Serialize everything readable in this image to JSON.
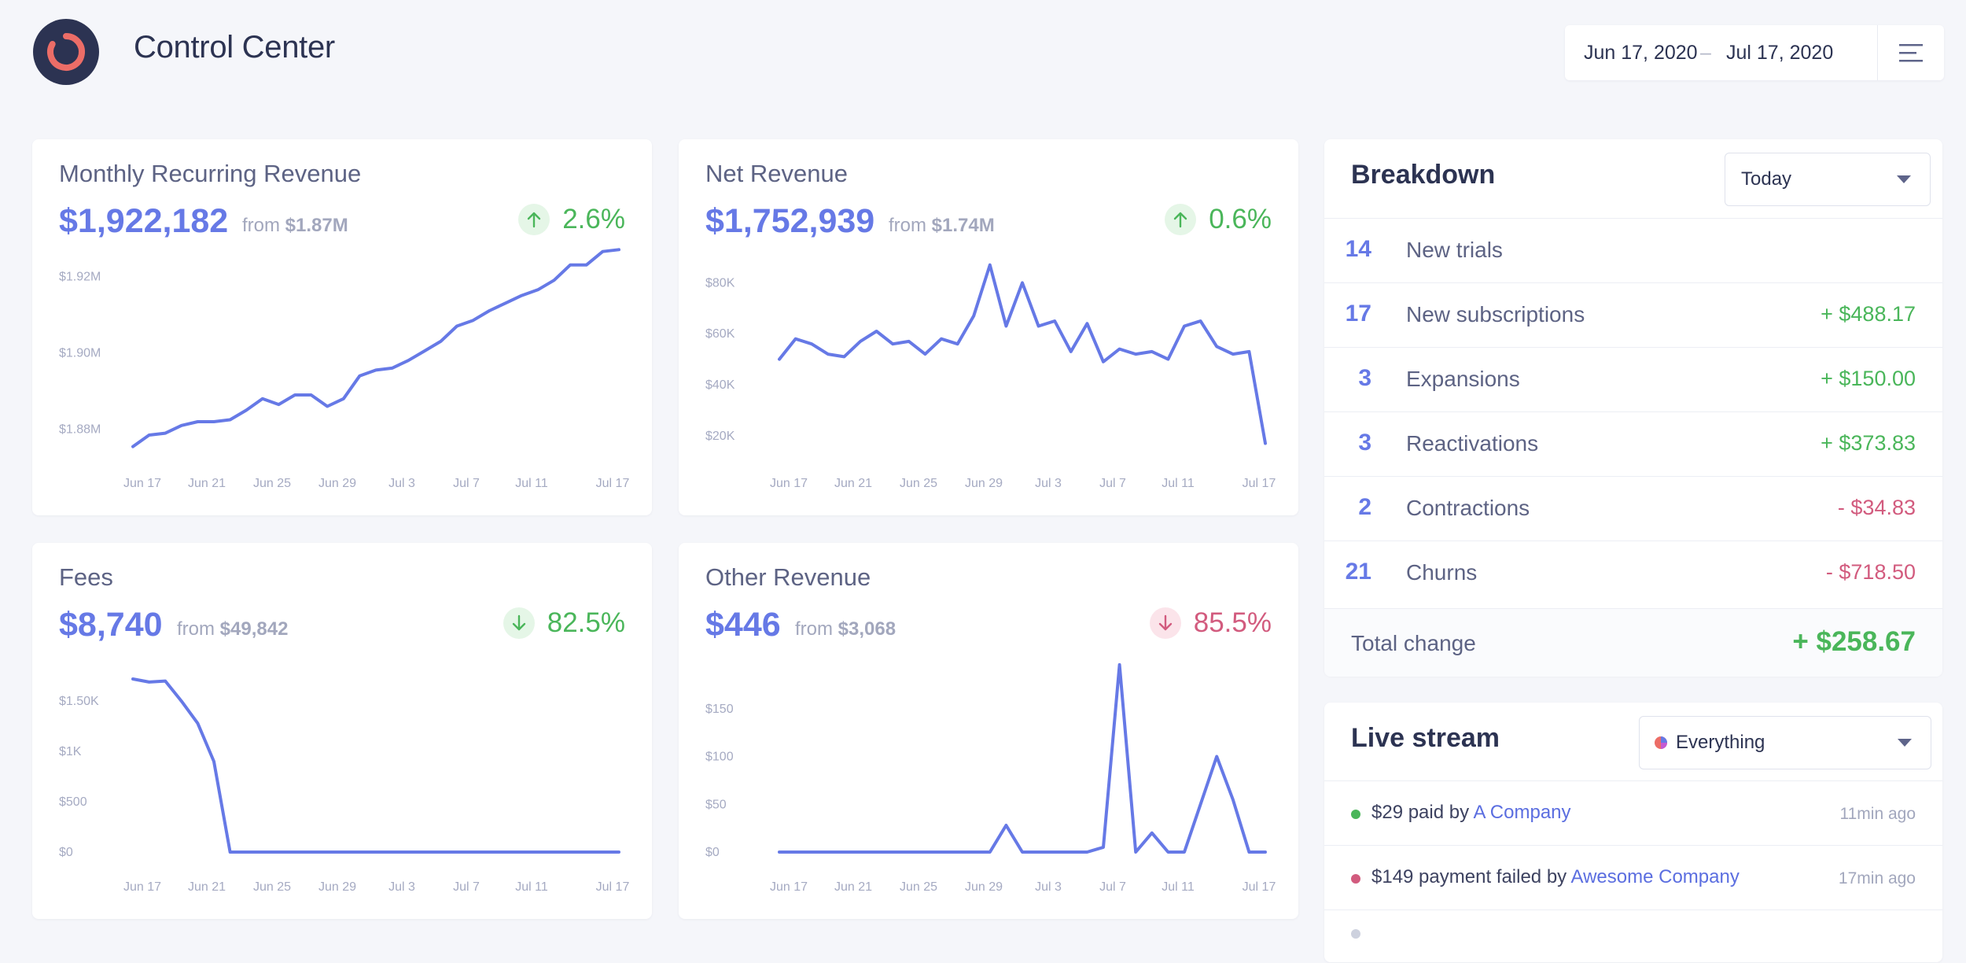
{
  "header": {
    "title": "Control Center",
    "date_start": "Jun 17, 2020",
    "date_separator": "–",
    "date_end": "Jul 17, 2020",
    "icons": {
      "logo": "logo-icon",
      "menu": "menu-icon"
    }
  },
  "colors": {
    "accent": "#6679e6",
    "positive": "#4ab65a",
    "negative": "#d25b7e",
    "brand": "#2c3352",
    "logo_ring": "#ec6d67"
  },
  "metrics": [
    {
      "title": "Monthly Recurring Revenue",
      "value": "$1,922,182",
      "from_label": "from",
      "from_value": "$1.87M",
      "delta": "2.6%",
      "direction": "up",
      "delta_icon": "arrow-up-icon"
    },
    {
      "title": "Net Revenue",
      "value": "$1,752,939",
      "from_label": "from",
      "from_value": "$1.74M",
      "delta": "0.6%",
      "direction": "up",
      "delta_icon": "arrow-up-icon"
    },
    {
      "title": "Fees",
      "value": "$8,740",
      "from_label": "from",
      "from_value": "$49,842",
      "delta": "82.5%",
      "direction": "down",
      "delta_icon": "arrow-down-icon"
    },
    {
      "title": "Other Revenue",
      "value": "$446",
      "from_label": "from",
      "from_value": "$3,068",
      "delta": "85.5%",
      "direction": "down",
      "delta_icon": "arrow-down-icon"
    }
  ],
  "chart_data": [
    {
      "type": "line",
      "x_ticks": [
        "Jun 17",
        "Jun 21",
        "Jun 25",
        "Jun 29",
        "Jul 3",
        "Jul 7",
        "Jul 11",
        "Jul 17"
      ],
      "y_ticks": [
        {
          "v": 1.88,
          "label": "$1.88M"
        },
        {
          "v": 1.9,
          "label": "$1.90M"
        },
        {
          "v": 1.92,
          "label": "$1.92M"
        }
      ],
      "ylim": [
        1.875,
        1.925
      ],
      "values": [
        1.8755,
        1.8785,
        1.879,
        1.881,
        1.882,
        1.882,
        1.8825,
        1.885,
        1.888,
        1.8865,
        1.889,
        1.889,
        1.886,
        1.888,
        1.894,
        1.8955,
        1.896,
        1.898,
        1.9005,
        1.903,
        1.907,
        1.9085,
        1.911,
        1.913,
        1.915,
        1.9165,
        1.919,
        1.923,
        1.923,
        1.9265,
        1.927
      ],
      "series": [
        {
          "values": []
        }
      ]
    },
    {
      "type": "line",
      "x_ticks": [
        "Jun 17",
        "Jun 21",
        "Jun 25",
        "Jun 29",
        "Jul 3",
        "Jul 7",
        "Jul 11",
        "Jul 17"
      ],
      "y_ticks": [
        {
          "v": 20000,
          "label": "$20K"
        },
        {
          "v": 40000,
          "label": "$40K"
        },
        {
          "v": 60000,
          "label": "$60K"
        },
        {
          "v": 80000,
          "label": "$80K"
        }
      ],
      "ylim": [
        15000,
        90000
      ],
      "values": [
        50000,
        58000,
        56000,
        52000,
        51000,
        57000,
        61000,
        56000,
        57000,
        52000,
        58000,
        56000,
        67000,
        87000,
        63000,
        80000,
        63000,
        65000,
        53000,
        64000,
        49000,
        54000,
        52000,
        53000,
        50000,
        63000,
        65000,
        55000,
        52000,
        53000,
        17000
      ]
    },
    {
      "type": "line",
      "x_ticks": [
        "Jun 17",
        "Jun 21",
        "Jun 25",
        "Jun 29",
        "Jul 3",
        "Jul 7",
        "Jul 11",
        "Jul 17"
      ],
      "y_ticks": [
        {
          "v": 0,
          "label": "$0"
        },
        {
          "v": 500,
          "label": "$500"
        },
        {
          "v": 1000,
          "label": "$1K"
        },
        {
          "v": 1500,
          "label": "$1.50K"
        }
      ],
      "ylim": [
        0,
        1900
      ],
      "values": [
        1720,
        1690,
        1700,
        1500,
        1280,
        900,
        0,
        0,
        0,
        0,
        0,
        0,
        0,
        0,
        0,
        0,
        0,
        0,
        0,
        0,
        0,
        0,
        0,
        0,
        0,
        0,
        0,
        0,
        0,
        0,
        0
      ]
    },
    {
      "type": "line",
      "x_ticks": [
        "Jun 17",
        "Jun 21",
        "Jun 25",
        "Jun 29",
        "Jul 3",
        "Jul 7",
        "Jul 11",
        "Jul 17"
      ],
      "y_ticks": [
        {
          "v": 0,
          "label": "$0"
        },
        {
          "v": 50,
          "label": "$50"
        },
        {
          "v": 100,
          "label": "$100"
        },
        {
          "v": 150,
          "label": "$150"
        }
      ],
      "ylim": [
        0,
        200
      ],
      "values": [
        0,
        0,
        0,
        0,
        0,
        0,
        0,
        0,
        0,
        0,
        0,
        0,
        0,
        0,
        28,
        0,
        0,
        0,
        0,
        0,
        5,
        196,
        0,
        20,
        0,
        0,
        50,
        100,
        55,
        0,
        0
      ]
    }
  ],
  "breakdown": {
    "title": "Breakdown",
    "period": "Today",
    "rows": [
      {
        "count": "14",
        "label": "New trials",
        "amount": "",
        "tone": "pos"
      },
      {
        "count": "17",
        "label": "New subscriptions",
        "amount": "+ $488.17",
        "tone": "pos"
      },
      {
        "count": "3",
        "label": "Expansions",
        "amount": "+ $150.00",
        "tone": "pos"
      },
      {
        "count": "3",
        "label": "Reactivations",
        "amount": "+ $373.83",
        "tone": "pos"
      },
      {
        "count": "2",
        "label": "Contractions",
        "amount": "- $34.83",
        "tone": "neg"
      },
      {
        "count": "21",
        "label": "Churns",
        "amount": "- $718.50",
        "tone": "neg"
      }
    ],
    "total_label": "Total change",
    "total_amount": "+ $258.67"
  },
  "livestream": {
    "title": "Live stream",
    "filter": "Everything",
    "filter_icon": "pie-icon",
    "items": [
      {
        "dot_color": "#4ab65a",
        "text": "$29 paid by",
        "link": "A Company",
        "time": "11min ago"
      },
      {
        "dot_color": "#d25b7e",
        "text": "$149 payment failed by",
        "link": "Awesome Company",
        "time": "17min ago"
      }
    ]
  }
}
